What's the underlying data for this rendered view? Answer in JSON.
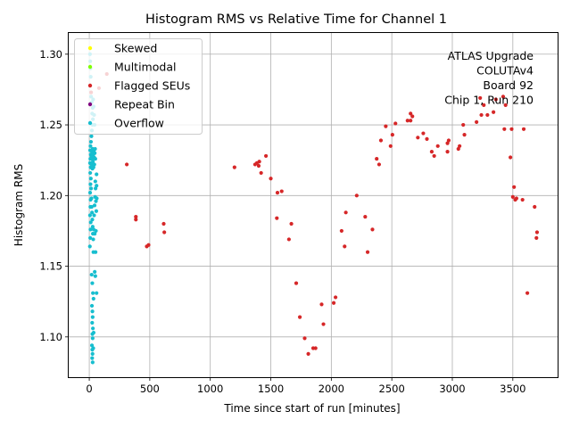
{
  "chart_data": {
    "type": "scatter",
    "title": "Histogram RMS vs Relative Time for Channel 1",
    "xlabel": "Time since start of run [minutes]",
    "ylabel": "Histogram RMS",
    "xlim": [
      -170,
      3870
    ],
    "ylim": [
      1.0715,
      1.315
    ],
    "xticks": [
      0,
      500,
      1000,
      1500,
      2000,
      2500,
      3000,
      3500
    ],
    "yticks": [
      1.1,
      1.15,
      1.2,
      1.25,
      1.3
    ],
    "xtick_labels": [
      "0",
      "500",
      "1000",
      "1500",
      "2000",
      "2500",
      "3000",
      "3500"
    ],
    "ytick_labels": [
      "1.10",
      "1.15",
      "1.20",
      "1.25",
      "1.30"
    ],
    "grid": true,
    "legend_position": "top-left",
    "legend": [
      {
        "label": "Skewed",
        "color": "#ffff00"
      },
      {
        "label": "Multimodal",
        "color": "#7fff00"
      },
      {
        "label": "Flagged SEUs",
        "color": "#d62728"
      },
      {
        "label": "Repeat Bin",
        "color": "#800080"
      },
      {
        "label": "Overflow",
        "color": "#17becf"
      }
    ],
    "annotation": [
      "ATLAS Upgrade",
      "COLUTAv4",
      "Board 92",
      "Chip 1, Run 210"
    ],
    "series": [
      {
        "name": "Flagged SEUs",
        "color": "#d62728",
        "points": [
          [
            310,
            1.222
          ],
          [
            385,
            1.185
          ],
          [
            385,
            1.183
          ],
          [
            475,
            1.164
          ],
          [
            490,
            1.165
          ],
          [
            615,
            1.18
          ],
          [
            620,
            1.174
          ],
          [
            1200,
            1.22
          ],
          [
            1370,
            1.222
          ],
          [
            1385,
            1.223
          ],
          [
            1400,
            1.221
          ],
          [
            1405,
            1.224
          ],
          [
            1420,
            1.216
          ],
          [
            1460,
            1.228
          ],
          [
            1500,
            1.212
          ],
          [
            1550,
            1.184
          ],
          [
            1555,
            1.202
          ],
          [
            1590,
            1.203
          ],
          [
            1650,
            1.169
          ],
          [
            1670,
            1.18
          ],
          [
            1710,
            1.138
          ],
          [
            1740,
            1.114
          ],
          [
            1780,
            1.099
          ],
          [
            1810,
            1.088
          ],
          [
            1850,
            1.092
          ],
          [
            1870,
            1.092
          ],
          [
            1920,
            1.123
          ],
          [
            1935,
            1.109
          ],
          [
            2020,
            1.124
          ],
          [
            2035,
            1.128
          ],
          [
            2085,
            1.175
          ],
          [
            2110,
            1.164
          ],
          [
            2120,
            1.188
          ],
          [
            2210,
            1.2
          ],
          [
            2280,
            1.185
          ],
          [
            2300,
            1.16
          ],
          [
            2340,
            1.176
          ],
          [
            2375,
            1.226
          ],
          [
            2395,
            1.222
          ],
          [
            2410,
            1.239
          ],
          [
            2450,
            1.249
          ],
          [
            2490,
            1.235
          ],
          [
            2505,
            1.243
          ],
          [
            2530,
            1.251
          ],
          [
            2630,
            1.253
          ],
          [
            2655,
            1.253
          ],
          [
            2655,
            1.258
          ],
          [
            2670,
            1.256
          ],
          [
            2715,
            1.241
          ],
          [
            2760,
            1.244
          ],
          [
            2790,
            1.24
          ],
          [
            2830,
            1.231
          ],
          [
            2850,
            1.228
          ],
          [
            2880,
            1.235
          ],
          [
            2960,
            1.231
          ],
          [
            2960,
            1.237
          ],
          [
            2970,
            1.239
          ],
          [
            3050,
            1.233
          ],
          [
            3060,
            1.235
          ],
          [
            3090,
            1.25
          ],
          [
            3100,
            1.243
          ],
          [
            3200,
            1.252
          ],
          [
            3230,
            1.269
          ],
          [
            3240,
            1.257
          ],
          [
            3260,
            1.264
          ],
          [
            3290,
            1.257
          ],
          [
            3340,
            1.259
          ],
          [
            3360,
            1.268
          ],
          [
            3420,
            1.27
          ],
          [
            3430,
            1.247
          ],
          [
            3440,
            1.264
          ],
          [
            3480,
            1.227
          ],
          [
            3490,
            1.247
          ],
          [
            3500,
            1.199
          ],
          [
            3510,
            1.206
          ],
          [
            3520,
            1.197
          ],
          [
            3530,
            1.198
          ],
          [
            3580,
            1.197
          ],
          [
            3590,
            1.247
          ],
          [
            3620,
            1.131
          ],
          [
            3680,
            1.192
          ],
          [
            3695,
            1.17
          ],
          [
            3700,
            1.174
          ],
          [
            15,
            1.273
          ],
          [
            80,
            1.276
          ],
          [
            145,
            1.286
          ]
        ]
      },
      {
        "name": "Overflow",
        "color": "#17becf",
        "points": [
          [
            5,
            1.164
          ],
          [
            8,
            1.17
          ],
          [
            10,
            1.176
          ],
          [
            12,
            1.181
          ],
          [
            6,
            1.186
          ],
          [
            9,
            1.192
          ],
          [
            11,
            1.197
          ],
          [
            7,
            1.202
          ],
          [
            10,
            1.208
          ],
          [
            13,
            1.212
          ],
          [
            8,
            1.216
          ],
          [
            11,
            1.22
          ],
          [
            6,
            1.223
          ],
          [
            9,
            1.226
          ],
          [
            12,
            1.229
          ],
          [
            7,
            1.232
          ],
          [
            10,
            1.235
          ],
          [
            14,
            1.238
          ],
          [
            18,
            1.228
          ],
          [
            20,
            1.222
          ],
          [
            22,
            1.231
          ],
          [
            24,
            1.226
          ],
          [
            26,
            1.219
          ],
          [
            28,
            1.233
          ],
          [
            30,
            1.224
          ],
          [
            32,
            1.229
          ],
          [
            35,
            1.22
          ],
          [
            38,
            1.232
          ],
          [
            40,
            1.227
          ],
          [
            42,
            1.222
          ],
          [
            45,
            1.23
          ],
          [
            48,
            1.233
          ],
          [
            50,
            1.226
          ],
          [
            15,
            1.205
          ],
          [
            18,
            1.198
          ],
          [
            20,
            1.192
          ],
          [
            23,
            1.188
          ],
          [
            25,
            1.183
          ],
          [
            28,
            1.178
          ],
          [
            30,
            1.173
          ],
          [
            33,
            1.169
          ],
          [
            36,
            1.176
          ],
          [
            40,
            1.186
          ],
          [
            44,
            1.193
          ],
          [
            48,
            1.199
          ],
          [
            52,
            1.205
          ],
          [
            55,
            1.196
          ],
          [
            58,
            1.189
          ],
          [
            60,
            1.207
          ],
          [
            18,
            1.242
          ],
          [
            22,
            1.246
          ],
          [
            26,
            1.25
          ],
          [
            30,
            1.254
          ],
          [
            24,
            1.258
          ],
          [
            28,
            1.262
          ],
          [
            20,
            1.266
          ],
          [
            32,
            1.268
          ],
          [
            36,
            1.263
          ],
          [
            40,
            1.257
          ],
          [
            44,
            1.25
          ],
          [
            15,
            1.27
          ],
          [
            12,
            1.284
          ],
          [
            10,
            1.29
          ],
          [
            8,
            1.295
          ],
          [
            6,
            1.3
          ],
          [
            20,
            1.144
          ],
          [
            25,
            1.138
          ],
          [
            30,
            1.131
          ],
          [
            35,
            1.127
          ],
          [
            22,
            1.122
          ],
          [
            26,
            1.118
          ],
          [
            28,
            1.114
          ],
          [
            24,
            1.11
          ],
          [
            30,
            1.106
          ],
          [
            26,
            1.102
          ],
          [
            28,
            1.099
          ],
          [
            22,
            1.094
          ],
          [
            25,
            1.091
          ],
          [
            27,
            1.088
          ],
          [
            24,
            1.085
          ],
          [
            28,
            1.082
          ],
          [
            33,
            1.092
          ],
          [
            36,
            1.103
          ],
          [
            45,
            1.146
          ],
          [
            50,
            1.143
          ],
          [
            60,
            1.131
          ],
          [
            34,
            1.16
          ],
          [
            52,
            1.16
          ],
          [
            45,
            1.173
          ],
          [
            55,
            1.175
          ],
          [
            60,
            1.215
          ],
          [
            62,
            1.198
          ],
          [
            50,
            1.21
          ]
        ]
      }
    ]
  }
}
